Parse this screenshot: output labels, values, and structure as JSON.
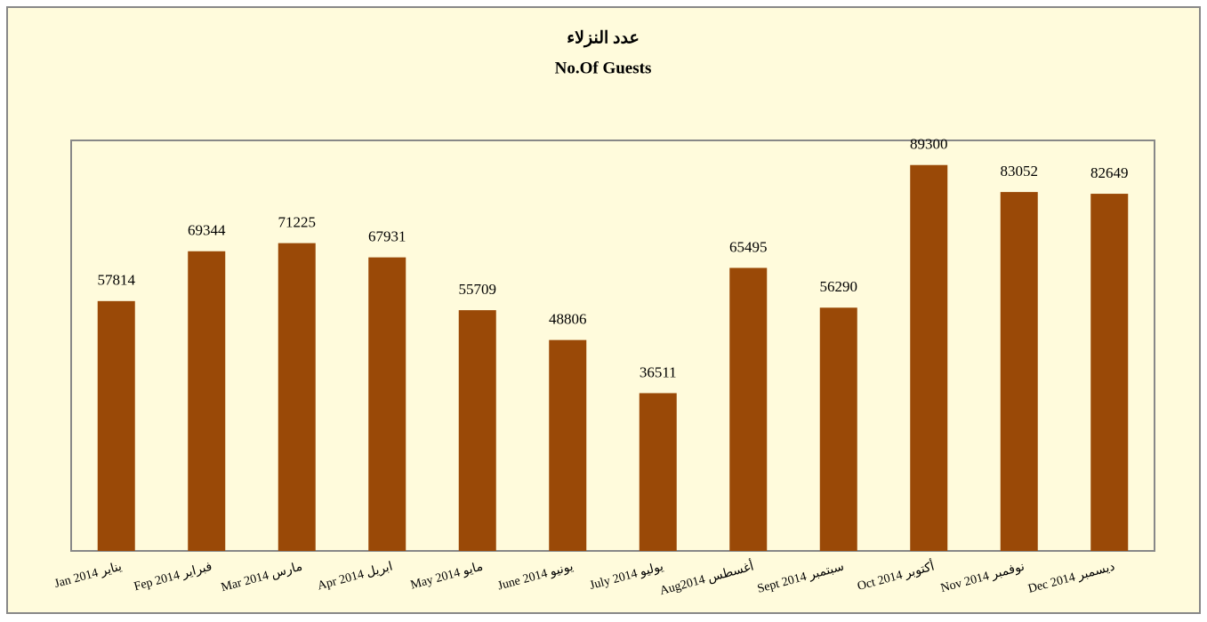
{
  "chart_data": {
    "type": "bar",
    "title": "عدد النزلاء",
    "subtitle": "No.Of Guests",
    "categories": [
      "Jan 2014 يناير",
      "Fep 2014 فبراير",
      "Mar 2014 مارس",
      "Apr 2014 ابريل",
      "May 2014 مايو",
      "June 2014 يونيو",
      "July 2014 يوليو",
      "Aug2014 أغسطس",
      "Sept 2014 سبتمبر",
      "Oct 2014 أكتوبر",
      "Nov 2014 نوفمبر",
      "Dec 2014 ديسمبر"
    ],
    "values": [
      57814,
      69344,
      71225,
      67931,
      55709,
      48806,
      36511,
      65495,
      56290,
      89300,
      83052,
      82649
    ],
    "color": "#9a4907",
    "ylim": [
      0,
      95000
    ]
  }
}
